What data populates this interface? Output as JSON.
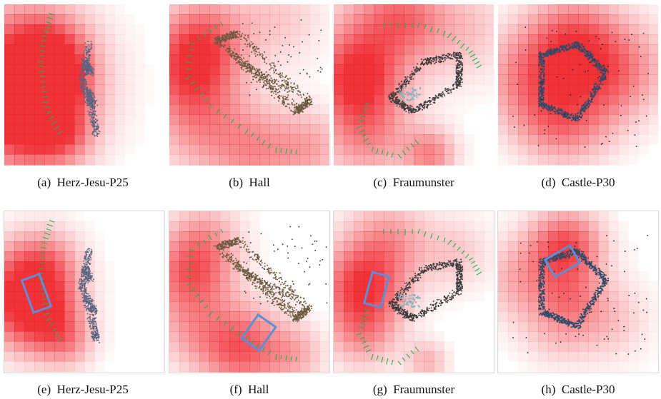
{
  "figure": {
    "panels": [
      {
        "label": "(a)",
        "name": "Herz-Jesu-P25",
        "shape": "facade",
        "highlight": false
      },
      {
        "label": "(b)",
        "name": "Hall",
        "shape": "hall",
        "highlight": false
      },
      {
        "label": "(c)",
        "name": "Fraumunster",
        "shape": "church",
        "highlight": false
      },
      {
        "label": "(d)",
        "name": "Castle-P30",
        "shape": "castle",
        "highlight": false
      },
      {
        "label": "(e)",
        "name": "Herz-Jesu-P25",
        "shape": "facade",
        "highlight": true
      },
      {
        "label": "(f)",
        "name": "Hall",
        "shape": "hall",
        "highlight": true
      },
      {
        "label": "(g)",
        "name": "Fraumunster",
        "shape": "church",
        "highlight": true
      },
      {
        "label": "(h)",
        "name": "Castle-P30",
        "shape": "castle",
        "highlight": true
      }
    ],
    "colors": {
      "heat": "#ee1c24",
      "camera_trail": "#22b14c",
      "highlight_box": "#5b8fd6",
      "facade_points": "#5a6580",
      "hall_points": "#6b5a40",
      "church_points": "#3c3c3c",
      "castle_points": "#2f4a66"
    }
  }
}
